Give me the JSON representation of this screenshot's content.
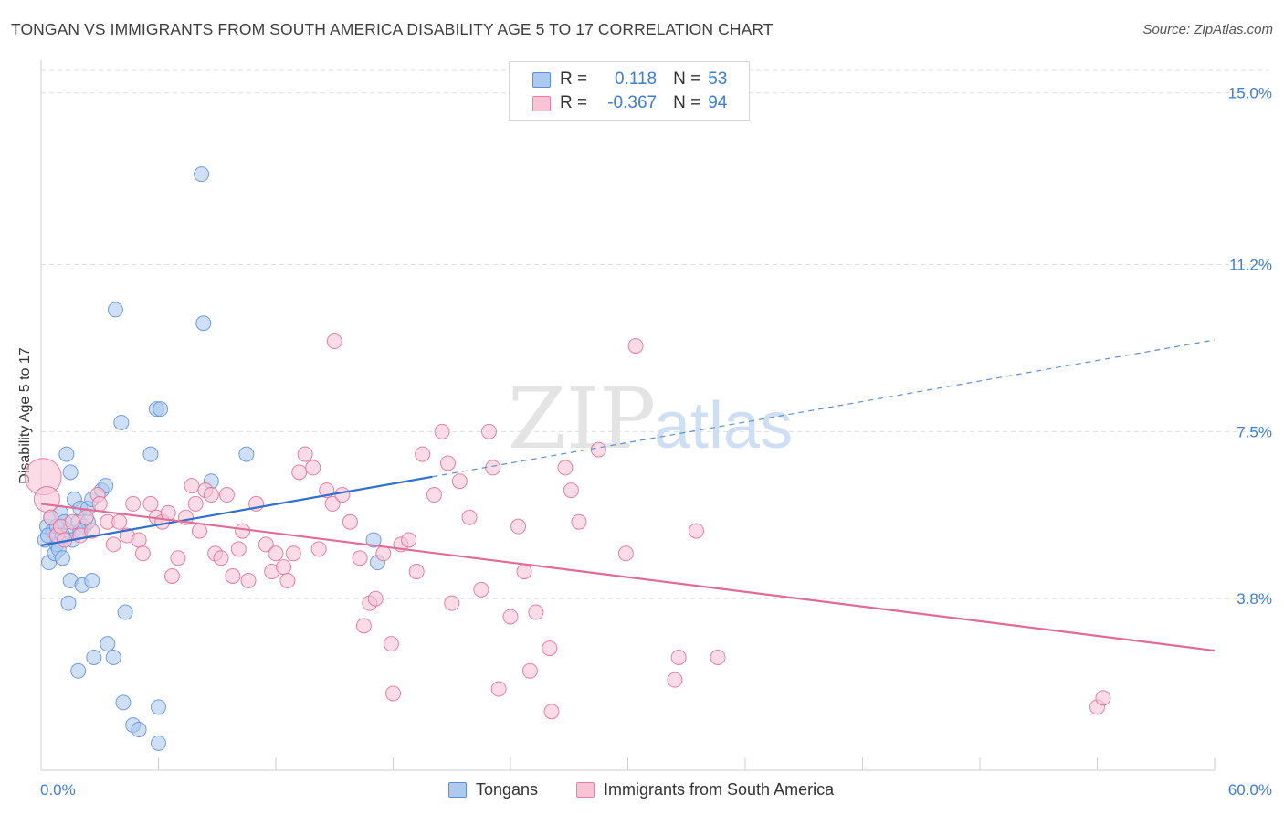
{
  "title": "TONGAN VS IMMIGRANTS FROM SOUTH AMERICA DISABILITY AGE 5 TO 17 CORRELATION CHART",
  "source": "Source: ZipAtlas.com",
  "watermark": {
    "zip": "ZIP",
    "atlas": "atlas"
  },
  "legend": {
    "r_label": "R =",
    "n_label": "N =",
    "rows": [
      {
        "r": "0.118",
        "n": "53",
        "fill": "#aec9f0",
        "stroke": "#5b8fd8"
      },
      {
        "r": "-0.367",
        "n": "94",
        "fill": "#f8c4d5",
        "stroke": "#e77fa3"
      }
    ]
  },
  "chart_data": {
    "type": "scatter",
    "title": "TONGAN VS IMMIGRANTS FROM SOUTH AMERICA DISABILITY AGE 5 TO 17 CORRELATION CHART",
    "xlabel": "",
    "ylabel": "Disability Age 5 to 17",
    "xlim": [
      0,
      60
    ],
    "ylim": [
      0,
      15.5
    ],
    "x_tick_labels": [
      "0.0%",
      "60.0%"
    ],
    "y_ticks": [
      3.8,
      7.5,
      11.2,
      15.0
    ],
    "y_tick_labels": [
      "3.8%",
      "7.5%",
      "11.2%",
      "15.0%"
    ],
    "grid": true,
    "series": [
      {
        "name": "Tongans",
        "color": "#5b8fd8",
        "fill": "#aec9f0",
        "trend": {
          "x": [
            0,
            20
          ],
          "y": [
            4.98,
            6.5
          ],
          "dashed_to": [
            60,
            9.53
          ]
        },
        "points": [
          [
            0.2,
            5.1
          ],
          [
            0.3,
            5.4
          ],
          [
            0.4,
            4.6
          ],
          [
            0.5,
            5.6
          ],
          [
            0.6,
            5.3
          ],
          [
            0.7,
            4.8
          ],
          [
            0.8,
            5.0
          ],
          [
            0.9,
            4.9
          ],
          [
            1.0,
            5.7
          ],
          [
            1.1,
            4.7
          ],
          [
            1.2,
            5.5
          ],
          [
            1.3,
            7.0
          ],
          [
            1.4,
            5.3
          ],
          [
            1.5,
            6.6
          ],
          [
            1.6,
            5.1
          ],
          [
            1.7,
            6.0
          ],
          [
            1.9,
            5.5
          ],
          [
            2.0,
            5.8
          ],
          [
            2.2,
            5.4
          ],
          [
            2.4,
            5.8
          ],
          [
            2.6,
            6.0
          ],
          [
            3.1,
            6.2
          ],
          [
            3.3,
            6.3
          ],
          [
            1.4,
            3.7
          ],
          [
            1.5,
            4.2
          ],
          [
            1.9,
            2.2
          ],
          [
            2.1,
            4.1
          ],
          [
            2.6,
            4.2
          ],
          [
            2.7,
            2.5
          ],
          [
            3.4,
            2.8
          ],
          [
            3.7,
            2.5
          ],
          [
            3.8,
            10.2
          ],
          [
            4.1,
            7.7
          ],
          [
            4.3,
            3.5
          ],
          [
            4.2,
            1.5
          ],
          [
            4.7,
            1.0
          ],
          [
            5.0,
            0.9
          ],
          [
            5.9,
            8.0
          ],
          [
            6.1,
            8.0
          ],
          [
            6.0,
            0.6
          ],
          [
            5.6,
            7.0
          ],
          [
            6.0,
            1.4
          ],
          [
            8.2,
            13.2
          ],
          [
            8.3,
            9.9
          ],
          [
            8.7,
            6.4
          ],
          [
            10.5,
            7.0
          ],
          [
            17.0,
            5.1
          ],
          [
            17.2,
            4.6
          ],
          [
            0.35,
            5.2
          ],
          [
            0.8,
            5.4
          ],
          [
            1.1,
            5.2
          ],
          [
            2.4,
            5.5
          ],
          [
            2.0,
            5.3
          ]
        ]
      },
      {
        "name": "Immigrants from South America",
        "color": "#e06c94",
        "fill": "#f8c4d5",
        "trend": {
          "x": [
            0,
            60
          ],
          "y": [
            5.9,
            2.65
          ]
        },
        "points": [
          [
            0.1,
            6.5
          ],
          [
            0.3,
            6.0
          ],
          [
            0.5,
            5.6
          ],
          [
            0.8,
            5.2
          ],
          [
            1.0,
            5.4
          ],
          [
            1.2,
            5.1
          ],
          [
            1.6,
            5.5
          ],
          [
            2.0,
            5.2
          ],
          [
            2.3,
            5.6
          ],
          [
            2.6,
            5.3
          ],
          [
            2.9,
            6.1
          ],
          [
            3.0,
            5.9
          ],
          [
            3.4,
            5.5
          ],
          [
            3.7,
            5.0
          ],
          [
            4.0,
            5.5
          ],
          [
            4.4,
            5.2
          ],
          [
            4.7,
            5.9
          ],
          [
            5.0,
            5.1
          ],
          [
            5.2,
            4.8
          ],
          [
            5.6,
            5.9
          ],
          [
            5.9,
            5.6
          ],
          [
            6.2,
            5.5
          ],
          [
            6.5,
            5.7
          ],
          [
            6.7,
            4.3
          ],
          [
            7.0,
            4.7
          ],
          [
            7.4,
            5.6
          ],
          [
            7.7,
            6.3
          ],
          [
            7.9,
            5.9
          ],
          [
            8.1,
            5.3
          ],
          [
            8.4,
            6.2
          ],
          [
            8.7,
            6.1
          ],
          [
            8.9,
            4.8
          ],
          [
            9.2,
            4.7
          ],
          [
            9.5,
            6.1
          ],
          [
            9.8,
            4.3
          ],
          [
            10.1,
            4.9
          ],
          [
            10.3,
            5.3
          ],
          [
            10.6,
            4.2
          ],
          [
            11.0,
            5.9
          ],
          [
            11.5,
            5.0
          ],
          [
            11.8,
            4.4
          ],
          [
            12.0,
            4.8
          ],
          [
            12.4,
            4.5
          ],
          [
            12.6,
            4.2
          ],
          [
            12.9,
            4.8
          ],
          [
            13.2,
            6.6
          ],
          [
            13.5,
            7.0
          ],
          [
            13.9,
            6.7
          ],
          [
            14.2,
            4.9
          ],
          [
            14.6,
            6.2
          ],
          [
            14.9,
            5.9
          ],
          [
            15.0,
            9.5
          ],
          [
            15.4,
            6.1
          ],
          [
            15.8,
            5.5
          ],
          [
            16.3,
            4.7
          ],
          [
            16.5,
            3.2
          ],
          [
            16.8,
            3.7
          ],
          [
            17.1,
            3.8
          ],
          [
            17.5,
            4.8
          ],
          [
            17.9,
            2.8
          ],
          [
            18.0,
            1.7
          ],
          [
            18.4,
            5.0
          ],
          [
            18.8,
            5.1
          ],
          [
            19.2,
            4.4
          ],
          [
            19.5,
            7.0
          ],
          [
            20.1,
            6.1
          ],
          [
            20.5,
            7.5
          ],
          [
            20.8,
            6.8
          ],
          [
            21.0,
            3.7
          ],
          [
            21.4,
            6.4
          ],
          [
            21.9,
            5.6
          ],
          [
            22.5,
            4.0
          ],
          [
            22.9,
            7.5
          ],
          [
            23.1,
            6.7
          ],
          [
            23.4,
            1.8
          ],
          [
            24.0,
            3.4
          ],
          [
            24.4,
            5.4
          ],
          [
            24.7,
            4.4
          ],
          [
            25.0,
            2.2
          ],
          [
            25.3,
            3.5
          ],
          [
            26.0,
            2.7
          ],
          [
            26.1,
            1.3
          ],
          [
            26.8,
            6.7
          ],
          [
            27.1,
            6.2
          ],
          [
            27.5,
            5.5
          ],
          [
            28.5,
            7.1
          ],
          [
            29.9,
            4.8
          ],
          [
            30.4,
            9.4
          ],
          [
            32.4,
            2.0
          ],
          [
            32.6,
            2.5
          ],
          [
            33.5,
            5.3
          ],
          [
            34.6,
            2.5
          ],
          [
            54.0,
            1.4
          ],
          [
            54.3,
            1.6
          ]
        ]
      }
    ]
  },
  "bottom_legend": [
    "Tongans",
    "Immigrants from South America"
  ]
}
